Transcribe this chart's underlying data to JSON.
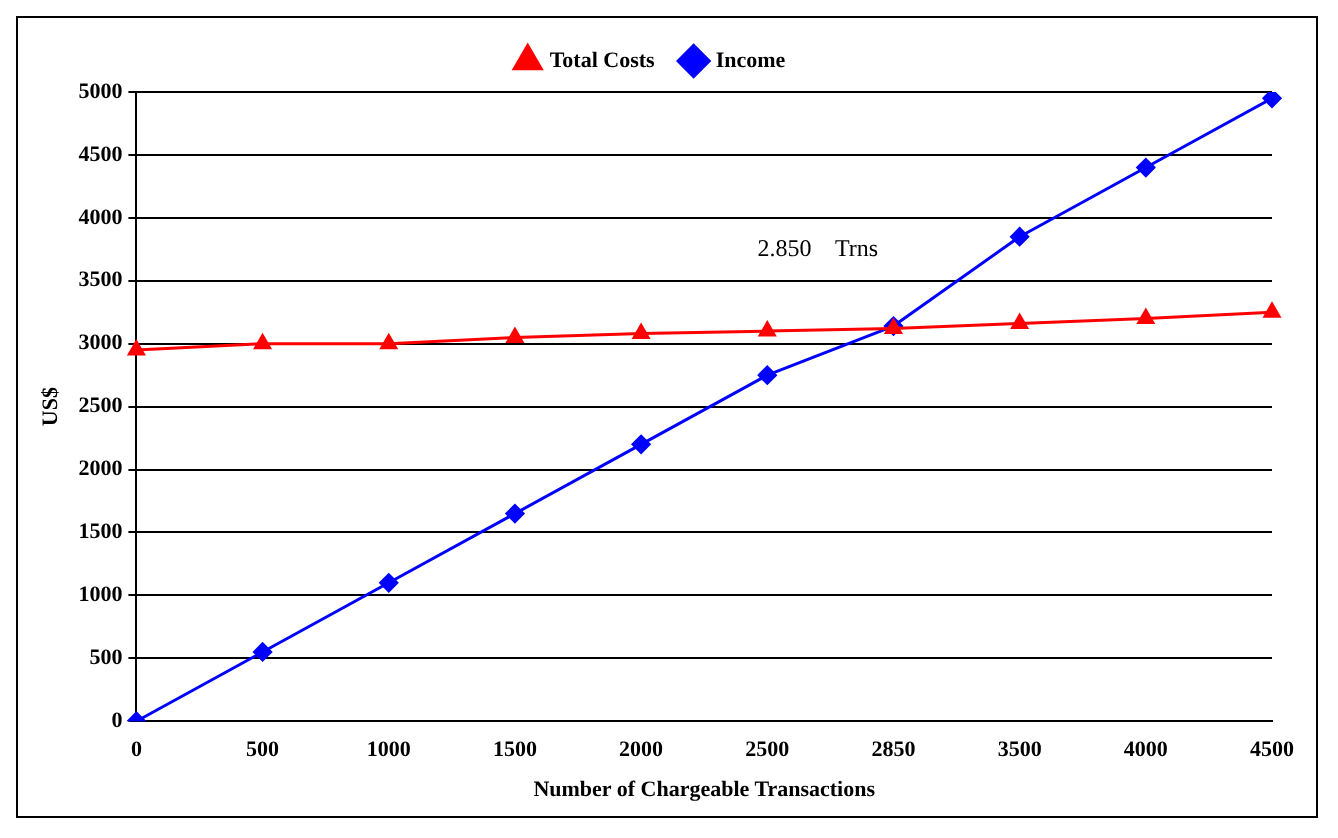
{
  "chart_data": {
    "type": "line",
    "xlabel": "Number of Chargeable Transactions",
    "ylabel": "US$",
    "categories": [
      "0",
      "500",
      "1000",
      "1500",
      "2000",
      "2500",
      "2850",
      "3500",
      "4000",
      "4500"
    ],
    "series": [
      {
        "name": "Income",
        "color": "#0000ff",
        "marker": "diamond",
        "values": [
          0,
          550,
          1100,
          1650,
          2200,
          2750,
          3140,
          3850,
          4400,
          4950
        ]
      },
      {
        "name": "Total Costs",
        "color": "#ff0000",
        "marker": "triangle",
        "values": [
          2950,
          3000,
          3000,
          3050,
          3080,
          3100,
          3120,
          3160,
          3200,
          3250
        ]
      }
    ],
    "ylim": [
      0,
      5000
    ],
    "yticks": [
      0,
      500,
      1000,
      1500,
      2000,
      2500,
      3000,
      3500,
      4000,
      4500,
      5000
    ],
    "grid": "y",
    "legend": "top",
    "line_style": "solid",
    "annotations": [
      "2.850    Trns"
    ]
  }
}
